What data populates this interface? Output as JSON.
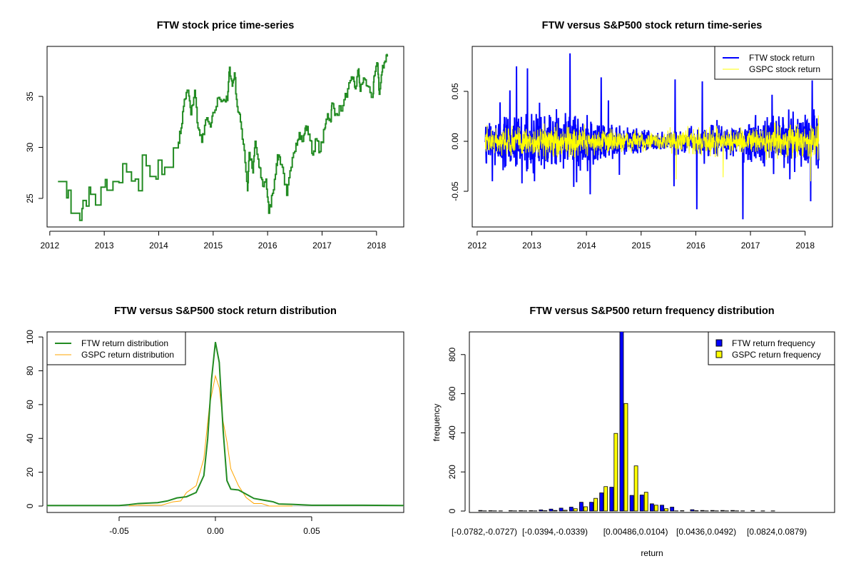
{
  "chart_data": [
    {
      "type": "line",
      "title": "FTW stock price time-series",
      "xlabel": "",
      "ylabel": "",
      "xlim": [
        2011.95,
        2018.5
      ],
      "ylim": [
        22.2,
        39.9
      ],
      "x_ticks": [
        "2012",
        "2013",
        "2014",
        "2015",
        "2016",
        "2017",
        "2018"
      ],
      "y_ticks": [
        "25",
        "30",
        "35"
      ],
      "series": [
        {
          "name": "FTW price",
          "color": "#228B22",
          "points": [
            [
              2012.15,
              26.65
            ],
            [
              2012.28,
              26.65
            ],
            [
              2012.31,
              25.05
            ],
            [
              2012.34,
              25.8
            ],
            [
              2012.39,
              23.55
            ],
            [
              2012.53,
              23.55
            ],
            [
              2012.55,
              22.85
            ],
            [
              2012.59,
              24.0
            ],
            [
              2012.61,
              24.8
            ],
            [
              2012.67,
              24.25
            ],
            [
              2012.72,
              26.1
            ],
            [
              2012.75,
              25.4
            ],
            [
              2012.84,
              24.35
            ],
            [
              2012.94,
              26.1
            ],
            [
              2013.02,
              26.85
            ],
            [
              2013.05,
              25.8
            ],
            [
              2013.16,
              26.65
            ],
            [
              2013.27,
              26.55
            ],
            [
              2013.34,
              28.4
            ],
            [
              2013.41,
              27.6
            ],
            [
              2013.5,
              26.7
            ],
            [
              2013.57,
              26.9
            ],
            [
              2013.63,
              25.75
            ],
            [
              2013.7,
              29.25
            ],
            [
              2013.77,
              28.2
            ],
            [
              2013.84,
              27.15
            ],
            [
              2013.95,
              26.9
            ],
            [
              2013.99,
              28.75
            ],
            [
              2014.06,
              27.35
            ],
            [
              2014.11,
              28.05
            ],
            [
              2014.24,
              28.05
            ],
            [
              2014.27,
              29.95
            ],
            [
              2014.36,
              30.5
            ],
            [
              2014.41,
              31.9
            ],
            [
              2014.47,
              34.7
            ],
            [
              2014.54,
              35.6
            ],
            [
              2014.59,
              33.2
            ],
            [
              2014.66,
              35.6
            ],
            [
              2014.72,
              31.9
            ],
            [
              2014.79,
              30.5
            ],
            [
              2014.86,
              32.7
            ],
            [
              2014.95,
              32.0
            ],
            [
              2015.01,
              33.4
            ],
            [
              2015.1,
              34.9
            ],
            [
              2015.19,
              34.7
            ],
            [
              2015.26,
              34.6
            ],
            [
              2015.3,
              37.85
            ],
            [
              2015.35,
              36.0
            ],
            [
              2015.39,
              37.3
            ],
            [
              2015.44,
              34.0
            ],
            [
              2015.5,
              32.5
            ],
            [
              2015.57,
              29.7
            ],
            [
              2015.63,
              25.75
            ],
            [
              2015.66,
              29.5
            ],
            [
              2015.73,
              27.5
            ],
            [
              2015.77,
              30.6
            ],
            [
              2015.84,
              28.05
            ],
            [
              2015.91,
              26.2
            ],
            [
              2015.97,
              26.9
            ],
            [
              2016.02,
              23.55
            ],
            [
              2016.09,
              25.5
            ],
            [
              2016.16,
              28.4
            ],
            [
              2016.2,
              29.25
            ],
            [
              2016.27,
              28.05
            ],
            [
              2016.35,
              25.3
            ],
            [
              2016.43,
              28.05
            ],
            [
              2016.52,
              30.4
            ],
            [
              2016.58,
              31.45
            ],
            [
              2016.65,
              30.6
            ],
            [
              2016.7,
              32.1
            ],
            [
              2016.76,
              31.3
            ],
            [
              2016.83,
              29.25
            ],
            [
              2016.89,
              30.85
            ],
            [
              2016.96,
              29.6
            ],
            [
              2017.05,
              31.9
            ],
            [
              2017.1,
              33.3
            ],
            [
              2017.16,
              32.5
            ],
            [
              2017.18,
              34.35
            ],
            [
              2017.25,
              33.3
            ],
            [
              2017.38,
              34.1
            ],
            [
              2017.47,
              35.75
            ],
            [
              2017.56,
              36.7
            ],
            [
              2017.61,
              35.75
            ],
            [
              2017.67,
              37.7
            ],
            [
              2017.7,
              35.5
            ],
            [
              2017.76,
              36.8
            ],
            [
              2017.83,
              36.0
            ],
            [
              2017.93,
              34.9
            ],
            [
              2017.96,
              37.05
            ],
            [
              2018.02,
              38.2
            ],
            [
              2018.05,
              35.2
            ],
            [
              2018.1,
              37.4
            ],
            [
              2018.14,
              38.3
            ],
            [
              2018.19,
              39.1
            ],
            [
              2018.2,
              38.9
            ]
          ]
        }
      ]
    },
    {
      "type": "line",
      "title": "FTW versus S&P500 stock return time-series",
      "xlabel": "",
      "ylabel": "",
      "xlim": [
        2011.91,
        2018.5
      ],
      "ylim": [
        -0.0857,
        0.095
      ],
      "x_ticks": [
        "2012",
        "2013",
        "2014",
        "2015",
        "2016",
        "2017",
        "2018"
      ],
      "y_ticks": [
        "-0.05",
        "0.00",
        "0.05"
      ],
      "legend": {
        "position": "top-right",
        "entries": [
          "FTW stock return",
          "GSPC stock return"
        ]
      },
      "series": [
        {
          "name": "FTW stock return",
          "color": "#0000FF",
          "typical_sd": 0.011,
          "x_range": [
            2012.15,
            2018.25
          ],
          "spikes": [
            [
              2012.42,
              0.039
            ],
            [
              2012.6,
              0.051
            ],
            [
              2012.72,
              0.075
            ],
            [
              2012.92,
              0.073
            ],
            [
              2013.7,
              0.088
            ],
            [
              2014.27,
              0.064
            ],
            [
              2014.4,
              0.041
            ],
            [
              2015.62,
              0.062
            ],
            [
              2016.12,
              0.06
            ],
            [
              2018.13,
              0.061
            ],
            [
              2012.28,
              -0.04
            ],
            [
              2012.82,
              -0.042
            ],
            [
              2013.05,
              -0.04
            ],
            [
              2013.82,
              -0.041
            ],
            [
              2014.07,
              -0.053
            ],
            [
              2015.6,
              -0.045
            ],
            [
              2016.02,
              -0.068
            ],
            [
              2016.86,
              -0.078
            ],
            [
              2018.1,
              -0.06
            ],
            [
              2017.72,
              -0.038
            ]
          ]
        },
        {
          "name": "GSPC stock return",
          "color": "#FFFF00",
          "typical_sd": 0.007,
          "x_range": [
            2012.15,
            2018.25
          ],
          "spikes": [
            [
              2015.64,
              -0.038
            ],
            [
              2016.5,
              -0.036
            ],
            [
              2018.1,
              -0.04
            ],
            [
              2018.24,
              0.026
            ]
          ]
        }
      ]
    },
    {
      "type": "line",
      "title": "FTW versus S&P500 stock return distribution",
      "xlabel": "",
      "ylabel": "",
      "xlim": [
        -0.0874,
        0.0978
      ],
      "ylim": [
        -3.8,
        103
      ],
      "x_ticks": [
        "-0.05",
        "0.00",
        "0.05"
      ],
      "y_ticks": [
        "0",
        "20",
        "40",
        "60",
        "80",
        "100"
      ],
      "legend": {
        "position": "top-left",
        "entries": [
          "FTW return distribution",
          "GSPC return distribution"
        ]
      },
      "series": [
        {
          "name": "FTW return distribution",
          "color": "#228B22",
          "x": [
            -0.09,
            -0.05,
            -0.045,
            -0.04,
            -0.03,
            -0.025,
            -0.02,
            -0.015,
            -0.01,
            -0.006,
            -0.004,
            -0.002,
            0,
            0.002,
            0.004,
            0.006,
            0.008,
            0.012,
            0.016,
            0.02,
            0.025,
            0.03,
            0.033,
            0.04,
            0.05,
            0.07,
            0.1
          ],
          "y": [
            0.3,
            0.3,
            0.8,
            1.5,
            2,
            3,
            4.8,
            5.5,
            8,
            18,
            40,
            75,
            97,
            85,
            45,
            15,
            10,
            9.5,
            7,
            4.5,
            3.5,
            2.5,
            1.2,
            1,
            0.5,
            0.5,
            0.3
          ]
        },
        {
          "name": "GSPC return distribution",
          "color": "#FFA500",
          "x": [
            -0.045,
            -0.04,
            -0.028,
            -0.022,
            -0.018,
            -0.015,
            -0.01,
            -0.006,
            -0.003,
            0,
            0.002,
            0.004,
            0.006,
            0.008,
            0.012,
            0.016,
            0.02,
            0.024,
            0.028,
            0.04
          ],
          "y": [
            0,
            0.5,
            0.5,
            2.5,
            3,
            8,
            12,
            28,
            60,
            77,
            70,
            50,
            38,
            22,
            12,
            5,
            1.5,
            1.5,
            0,
            0
          ]
        }
      ]
    },
    {
      "type": "bar",
      "title": "FTW versus S&P500 return frequency distribution",
      "xlabel": "return",
      "ylabel": "frequency",
      "ylim": [
        0,
        916
      ],
      "y_ticks": [
        "0",
        "200",
        "400",
        "600",
        "800"
      ],
      "x_tick_labels": [
        [
          0,
          "[-0.0782,-0.0727)"
        ],
        [
          7,
          "[-0.0394,-0.0339)"
        ],
        [
          15,
          "[0.00486,0.0104)"
        ],
        [
          22,
          "[0.0436,0.0492)"
        ],
        [
          29,
          "[0.0824,0.0879)"
        ]
      ],
      "legend": {
        "position": "top-right",
        "entries": [
          "FTW return frequency",
          "GSPC return frequency"
        ]
      },
      "series": [
        {
          "name": "FTW return frequency",
          "color": "#0000FF",
          "values": [
            3,
            2,
            1,
            2,
            2,
            2,
            6,
            10,
            15,
            20,
            45,
            45,
            93,
            122,
            920,
            80,
            82,
            37,
            30,
            20,
            2,
            7,
            3,
            3,
            3,
            3,
            1,
            2,
            1,
            1
          ]
        },
        {
          "name": "GSPC return frequency",
          "color": "#FFFF00",
          "values": [
            1,
            1,
            0,
            1,
            1,
            1,
            2,
            3,
            4,
            12,
            22,
            65,
            125,
            397,
            550,
            231,
            96,
            30,
            12,
            1,
            0,
            2,
            1,
            1,
            1,
            1,
            0,
            0,
            0,
            0
          ]
        }
      ]
    }
  ]
}
